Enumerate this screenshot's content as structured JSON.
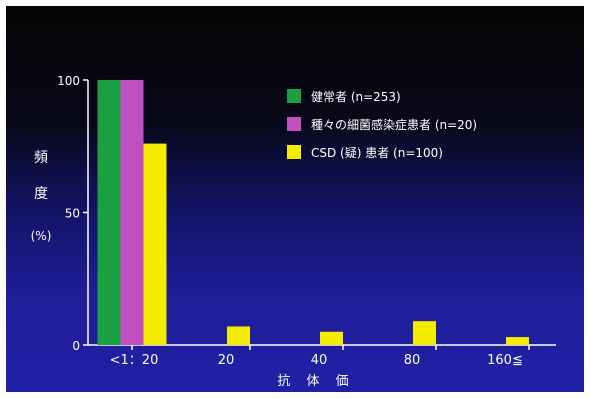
{
  "chart_data": {
    "type": "bar",
    "ylabel": "頻\n度\n(%)",
    "xlabel": "抗 体 価",
    "categories": [
      "<1：20",
      "20",
      "40",
      "80",
      "160≦"
    ],
    "ylim": [
      0,
      100
    ],
    "yticks": [
      0,
      50,
      100
    ],
    "legend_position": "top-right",
    "series": [
      {
        "name": "健常者 (n=253)",
        "color": "#1aa040",
        "values": [
          100,
          0,
          0,
          0,
          0
        ]
      },
      {
        "name": "種々の細菌感染症患者 (n=20)",
        "color": "#c050c0",
        "values": [
          100,
          0,
          0,
          0,
          0
        ]
      },
      {
        "name": "CSD (疑) 患者 (n=100)",
        "color": "#f5ec00",
        "values": [
          76,
          7,
          5,
          9,
          3
        ]
      }
    ]
  }
}
